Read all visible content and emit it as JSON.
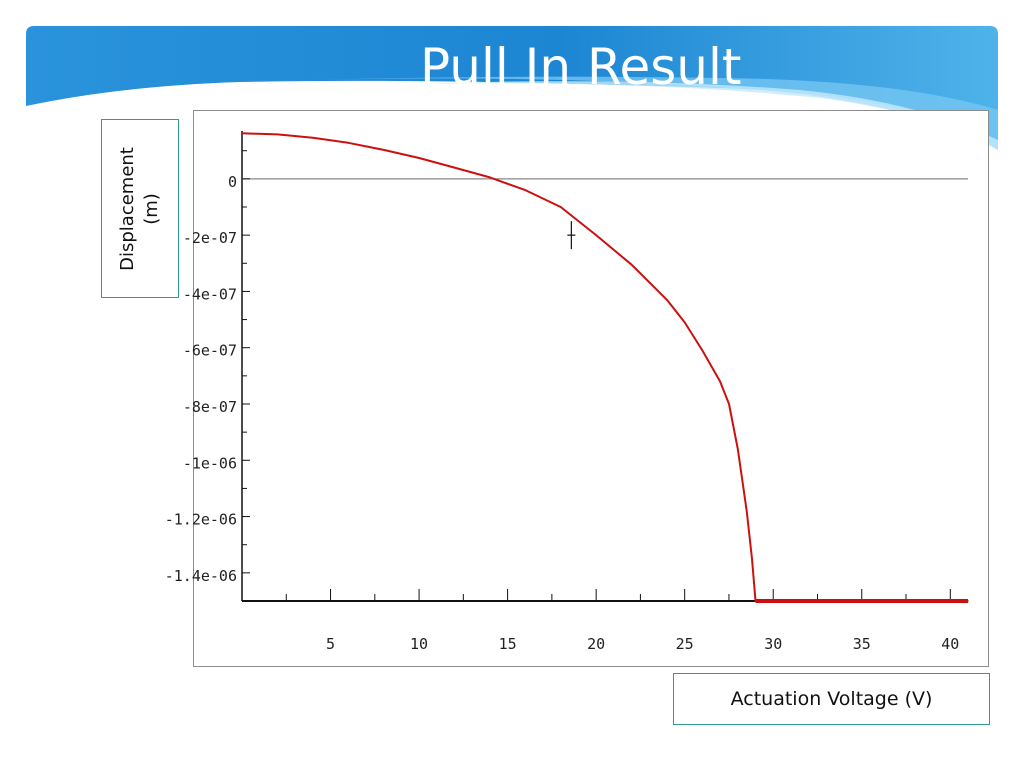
{
  "slide": {
    "title": "Pull In Result",
    "banner_colors": [
      "#1e8ad6",
      "#6cc3f0",
      "#bfe6fb"
    ]
  },
  "labels": {
    "y_axis": "Displacement\n(m)",
    "x_axis": "Actuation Voltage (V)"
  },
  "chart_data": {
    "type": "line",
    "xlabel": "Actuation Voltage (V)",
    "ylabel": "Displacement\n(m)",
    "xlim": [
      0,
      41
    ],
    "ylim": [
      -1.5e-06,
      1.7e-07
    ],
    "x_ticks": [
      5,
      10,
      15,
      20,
      25,
      30,
      35,
      40
    ],
    "x_tick_labels": [
      "5",
      "10",
      "15",
      "20",
      "25",
      "30",
      "35",
      "40"
    ],
    "y_ticks": [
      0,
      -2e-07,
      -4e-07,
      -6e-07,
      -8e-07,
      -1e-06,
      -1.2e-06,
      -1.4e-06
    ],
    "y_tick_labels": [
      "0",
      "-2e-07",
      "-4e-07",
      "-6e-07",
      "-8e-07",
      "-1e-06",
      "-1.2e-06",
      "-1.4e-06"
    ],
    "zero_line": true,
    "grid": false,
    "series": [
      {
        "color": "#cc1010",
        "x": [
          0,
          2,
          4,
          6,
          8,
          10,
          12,
          14,
          16,
          18,
          20,
          22,
          24,
          25,
          26,
          27,
          27.5,
          28,
          28.5,
          28.8,
          29,
          41
        ],
        "y": [
          1.62e-07,
          1.58e-07,
          1.46e-07,
          1.28e-07,
          1.03e-07,
          7.4e-08,
          4e-08,
          5e-09,
          -4e-08,
          -1e-07,
          -2e-07,
          -3.05e-07,
          -4.3e-07,
          -5.1e-07,
          -6.1e-07,
          -7.2e-07,
          -8e-07,
          -9.6e-07,
          -1.18e-06,
          -1.35e-06,
          -1.5e-06,
          -1.5e-06
        ]
      }
    ],
    "marker": {
      "x": 18.6,
      "y": -2e-07,
      "style": "crosshair",
      "color": "#111111"
    }
  }
}
